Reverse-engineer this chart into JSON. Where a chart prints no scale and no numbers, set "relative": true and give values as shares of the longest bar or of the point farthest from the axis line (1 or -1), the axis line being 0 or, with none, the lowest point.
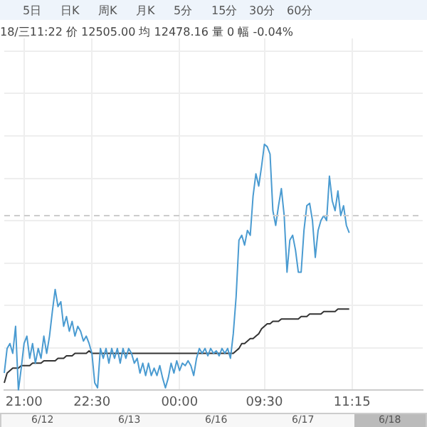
{
  "chart_data": {
    "type": "line",
    "relative": true,
    "title": "18/三11:22 价 12505.00 均 12478.16 量 0 幅 -0.04%",
    "annotations": [
      "5日",
      "日K",
      "周K",
      "月K",
      "5分",
      "15分",
      "30分",
      "60分",
      "6/12",
      "6/13",
      "6/16",
      "6/17",
      "6/18"
    ],
    "categories": [
      null,
      null,
      null,
      null,
      null,
      null,
      null,
      "21:00",
      null,
      null,
      null,
      null,
      null,
      null,
      null,
      null,
      null,
      null,
      null,
      null,
      null,
      null,
      null,
      null,
      null,
      null,
      null,
      null,
      null,
      null,
      null,
      "22:30",
      null,
      null,
      null,
      null,
      null,
      null,
      null,
      null,
      null,
      null,
      null,
      null,
      null,
      null,
      null,
      null,
      null,
      null,
      null,
      null,
      null,
      null,
      null,
      null,
      null,
      null,
      null,
      null,
      null,
      null,
      "00:00",
      null,
      null,
      null,
      null,
      null,
      null,
      null,
      null,
      null,
      null,
      null,
      null,
      null,
      null,
      null,
      null,
      null,
      null,
      null,
      null,
      null,
      null,
      null,
      null,
      null,
      null,
      null,
      null,
      null,
      "09:30",
      null,
      null,
      null,
      null,
      null,
      null,
      null,
      null,
      null,
      null,
      null,
      null,
      null,
      null,
      null,
      null,
      null,
      null,
      null,
      null,
      null,
      null,
      null,
      null,
      null,
      null,
      null,
      null,
      null,
      null,
      "11:15",
      null,
      null,
      null,
      null,
      null,
      null,
      null,
      null,
      null,
      null,
      null,
      null,
      null,
      null,
      null,
      null,
      null,
      null,
      null,
      null,
      null,
      null,
      null,
      null,
      null
    ],
    "series": [
      {
        "color": "#4a9bd1",
        "values": [
          0.07,
          0.17,
          0.19,
          0.15,
          0.26,
          0,
          0.09,
          0.19,
          0.22,
          0.13,
          0.19,
          0.11,
          0.17,
          0.13,
          0.22,
          0.15,
          0.22,
          0.32,
          0.41,
          0.34,
          0.36,
          0.26,
          0.3,
          0.24,
          0.28,
          0.22,
          0.26,
          0.24,
          0.2,
          0.22,
          0.19,
          0.15,
          0.03,
          0.01,
          0.17,
          0.13,
          0.17,
          0.11,
          0.17,
          0.13,
          0.17,
          0.11,
          0.17,
          0.13,
          0.17,
          0.15,
          0.11,
          0.13,
          0.07,
          0.11,
          0.06,
          0.11,
          0.06,
          0.09,
          0.06,
          0.1,
          0.05,
          0.01,
          0.05,
          0.11,
          0.07,
          0.12,
          0.08,
          0.11,
          0.1,
          0.12,
          0.1,
          0.06,
          0.13,
          0.17,
          0.15,
          0.17,
          0.14,
          0.17,
          0.15,
          0.16,
          0.14,
          0.17,
          0.15,
          0.17,
          0.13,
          0.23,
          0.38,
          0.61,
          0.63,
          0.59,
          0.65,
          0.63,
          0.79,
          0.88,
          0.83,
          0.91,
          1,
          0.99,
          0.96,
          0.73,
          0.67,
          0.75,
          0.82,
          0.71,
          0.48,
          0.61,
          0.63,
          0.57,
          0.48,
          0.48,
          0.65,
          0.75,
          0.76,
          0.69,
          0.54,
          0.65,
          0.69,
          0.71,
          0.69,
          0.87,
          0.77,
          0.73,
          0.81,
          0.71,
          0.75,
          0.67,
          0.64,
          null,
          null,
          null,
          null,
          null,
          null,
          null,
          null,
          null,
          null,
          null,
          null,
          null,
          null,
          null,
          null,
          null,
          null,
          null,
          null,
          null,
          null,
          null,
          null,
          null,
          null
        ]
      },
      {
        "color": "#333333",
        "values": [
          0.03,
          0.07,
          0.08,
          0.09,
          0.09,
          0.09,
          0.1,
          0.1,
          0.1,
          0.1,
          0.11,
          0.11,
          0.11,
          0.11,
          0.12,
          0.12,
          0.12,
          0.12,
          0.12,
          0.13,
          0.13,
          0.13,
          0.14,
          0.14,
          0.14,
          0.15,
          0.15,
          0.15,
          0.15,
          0.15,
          0.16,
          0.15,
          0.15,
          0.15,
          0.15,
          0.15,
          0.15,
          0.15,
          0.15,
          0.15,
          0.15,
          0.15,
          0.15,
          0.15,
          0.15,
          0.15,
          0.15,
          0.15,
          0.15,
          0.15,
          0.15,
          0.15,
          0.15,
          0.15,
          0.15,
          0.15,
          0.15,
          0.15,
          0.15,
          0.15,
          0.15,
          0.15,
          0.15,
          0.15,
          0.15,
          0.15,
          0.15,
          0.15,
          0.15,
          0.15,
          0.15,
          0.15,
          0.15,
          0.15,
          0.15,
          0.15,
          0.15,
          0.15,
          0.15,
          0.15,
          0.15,
          0.15,
          0.16,
          0.17,
          0.19,
          0.19,
          0.2,
          0.21,
          0.21,
          0.22,
          0.23,
          0.25,
          0.26,
          0.27,
          0.27,
          0.28,
          0.28,
          0.28,
          0.29,
          0.29,
          0.29,
          0.29,
          0.29,
          0.29,
          0.29,
          0.3,
          0.3,
          0.3,
          0.31,
          0.31,
          0.31,
          0.31,
          0.31,
          0.32,
          0.32,
          0.32,
          0.32,
          0.32,
          0.33,
          0.33,
          0.33,
          0.33,
          0.33,
          null,
          null,
          null,
          null,
          null,
          null,
          null,
          null,
          null,
          null,
          null,
          null,
          null,
          null,
          null,
          null,
          null,
          null,
          null,
          null,
          null,
          null,
          null,
          null,
          null,
          null
        ]
      }
    ],
    "ref_lines": [
      {
        "axis": "y",
        "value": 0.71,
        "color": "#cccccc",
        "line_style": "dashed"
      }
    ],
    "grid": true,
    "marker": "none",
    "legend": false
  }
}
